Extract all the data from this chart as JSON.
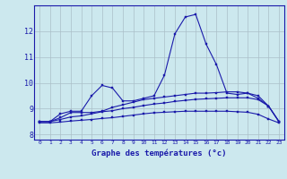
{
  "title": "",
  "xlabel": "Graphe des températures (°c)",
  "xlim": [
    0,
    23
  ],
  "ylim": [
    7.8,
    13.0
  ],
  "xticks": [
    0,
    1,
    2,
    3,
    4,
    5,
    6,
    7,
    8,
    9,
    10,
    11,
    12,
    13,
    14,
    15,
    16,
    17,
    18,
    19,
    20,
    21,
    22,
    23
  ],
  "yticks": [
    8,
    9,
    10,
    11,
    12
  ],
  "background_color": "#cce8ee",
  "grid_color": "#aabfc8",
  "line_color": "#1a1aaa",
  "curve1": [
    8.5,
    8.5,
    8.8,
    8.9,
    8.9,
    9.5,
    9.9,
    9.8,
    9.3,
    9.3,
    9.4,
    9.5,
    10.3,
    11.9,
    12.55,
    12.65,
    11.5,
    10.7,
    9.6,
    9.55,
    9.6,
    9.4,
    9.1,
    8.5
  ],
  "curve2": [
    8.5,
    8.5,
    8.65,
    8.85,
    8.85,
    8.85,
    8.9,
    9.05,
    9.15,
    9.25,
    9.35,
    9.4,
    9.45,
    9.5,
    9.55,
    9.6,
    9.6,
    9.62,
    9.65,
    9.65,
    9.6,
    9.5,
    9.1,
    8.5
  ],
  "curve3": [
    8.5,
    8.5,
    8.58,
    8.68,
    8.72,
    8.8,
    8.88,
    8.92,
    9.0,
    9.05,
    9.12,
    9.18,
    9.22,
    9.28,
    9.32,
    9.36,
    9.38,
    9.4,
    9.42,
    9.42,
    9.42,
    9.35,
    9.1,
    8.5
  ],
  "curve4": [
    8.45,
    8.45,
    8.48,
    8.52,
    8.55,
    8.58,
    8.62,
    8.65,
    8.7,
    8.75,
    8.8,
    8.84,
    8.86,
    8.88,
    8.9,
    8.9,
    8.9,
    8.9,
    8.9,
    8.88,
    8.86,
    8.78,
    8.6,
    8.45
  ]
}
